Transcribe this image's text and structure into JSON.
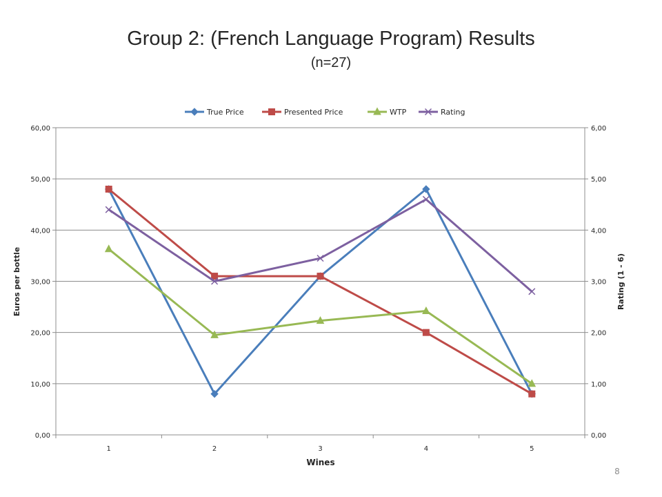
{
  "slide": {
    "title": "Group 2: (French Language Program) Results",
    "subtitle": "(n=27)",
    "page_number": "8"
  },
  "chart_data": {
    "type": "line",
    "title": "Group 2: (French Language Program) Results",
    "subtitle": "(n=27)",
    "xlabel": "Wines",
    "ylabel": "Euros per bottle",
    "y2label": "Rating (1 - 6)",
    "categories": [
      "1",
      "2",
      "3",
      "4",
      "5"
    ],
    "ylim": [
      0,
      60
    ],
    "y2lim": [
      0,
      6
    ],
    "yticks": [
      "0,00",
      "10,00",
      "20,00",
      "30,00",
      "40,00",
      "50,00",
      "60,00"
    ],
    "y2ticks": [
      "0,00",
      "1,00",
      "2,00",
      "3,00",
      "4,00",
      "5,00",
      "6,00"
    ],
    "legend_position": "top",
    "grid": true,
    "series": [
      {
        "name": "True Price",
        "axis": "left",
        "color": "#4a7ebb",
        "marker": "diamond",
        "values": [
          48,
          8,
          31,
          48,
          8
        ]
      },
      {
        "name": "Presented Price",
        "axis": "left",
        "color": "#be4b48",
        "marker": "square",
        "values": [
          48,
          31,
          31,
          20,
          8
        ]
      },
      {
        "name": "WTP",
        "axis": "left",
        "color": "#98b954",
        "marker": "triangle",
        "values": [
          36.3,
          19.5,
          22.3,
          24.2,
          10
        ]
      },
      {
        "name": "Rating",
        "axis": "right",
        "color": "#7d60a0",
        "marker": "x",
        "values": [
          4.4,
          3.0,
          3.45,
          4.6,
          2.8
        ]
      }
    ]
  }
}
